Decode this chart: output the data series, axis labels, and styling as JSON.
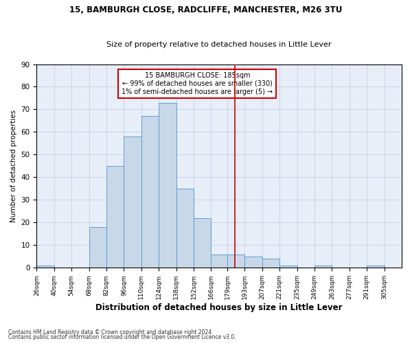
{
  "title1": "15, BAMBURGH CLOSE, RADCLIFFE, MANCHESTER, M26 3TU",
  "title2": "Size of property relative to detached houses in Little Lever",
  "xlabel": "Distribution of detached houses by size in Little Lever",
  "ylabel": "Number of detached properties",
  "bin_labels": [
    "26sqm",
    "40sqm",
    "54sqm",
    "68sqm",
    "82sqm",
    "96sqm",
    "110sqm",
    "124sqm",
    "138sqm",
    "152sqm",
    "166sqm",
    "179sqm",
    "193sqm",
    "207sqm",
    "221sqm",
    "235sqm",
    "249sqm",
    "263sqm",
    "277sqm",
    "291sqm",
    "305sqm"
  ],
  "bin_edges": [
    26,
    40,
    54,
    68,
    82,
    96,
    110,
    124,
    138,
    152,
    166,
    179,
    193,
    207,
    221,
    235,
    249,
    263,
    277,
    291,
    305,
    319
  ],
  "bar_heights": [
    1,
    0,
    0,
    18,
    45,
    58,
    67,
    73,
    35,
    22,
    6,
    6,
    5,
    4,
    1,
    0,
    1,
    0,
    0,
    1,
    0
  ],
  "bar_color": "#c8d8e8",
  "bar_edge_color": "#5a9fd4",
  "vline_x": 185,
  "vline_color": "#cc0000",
  "annotation_title": "15 BAMBURGH CLOSE: 185sqm",
  "annotation_line2": "← 99% of detached houses are smaller (330)",
  "annotation_line3": "1% of semi-detached houses are larger (5) →",
  "annotation_box_color": "#cc0000",
  "ylim": [
    0,
    90
  ],
  "yticks": [
    0,
    10,
    20,
    30,
    40,
    50,
    60,
    70,
    80,
    90
  ],
  "grid_color": "#c8d4e8",
  "bg_color": "#e8eef8",
  "footnote1": "Contains HM Land Registry data © Crown copyright and database right 2024.",
  "footnote2": "Contains public sector information licensed under the Open Government Licence v3.0."
}
